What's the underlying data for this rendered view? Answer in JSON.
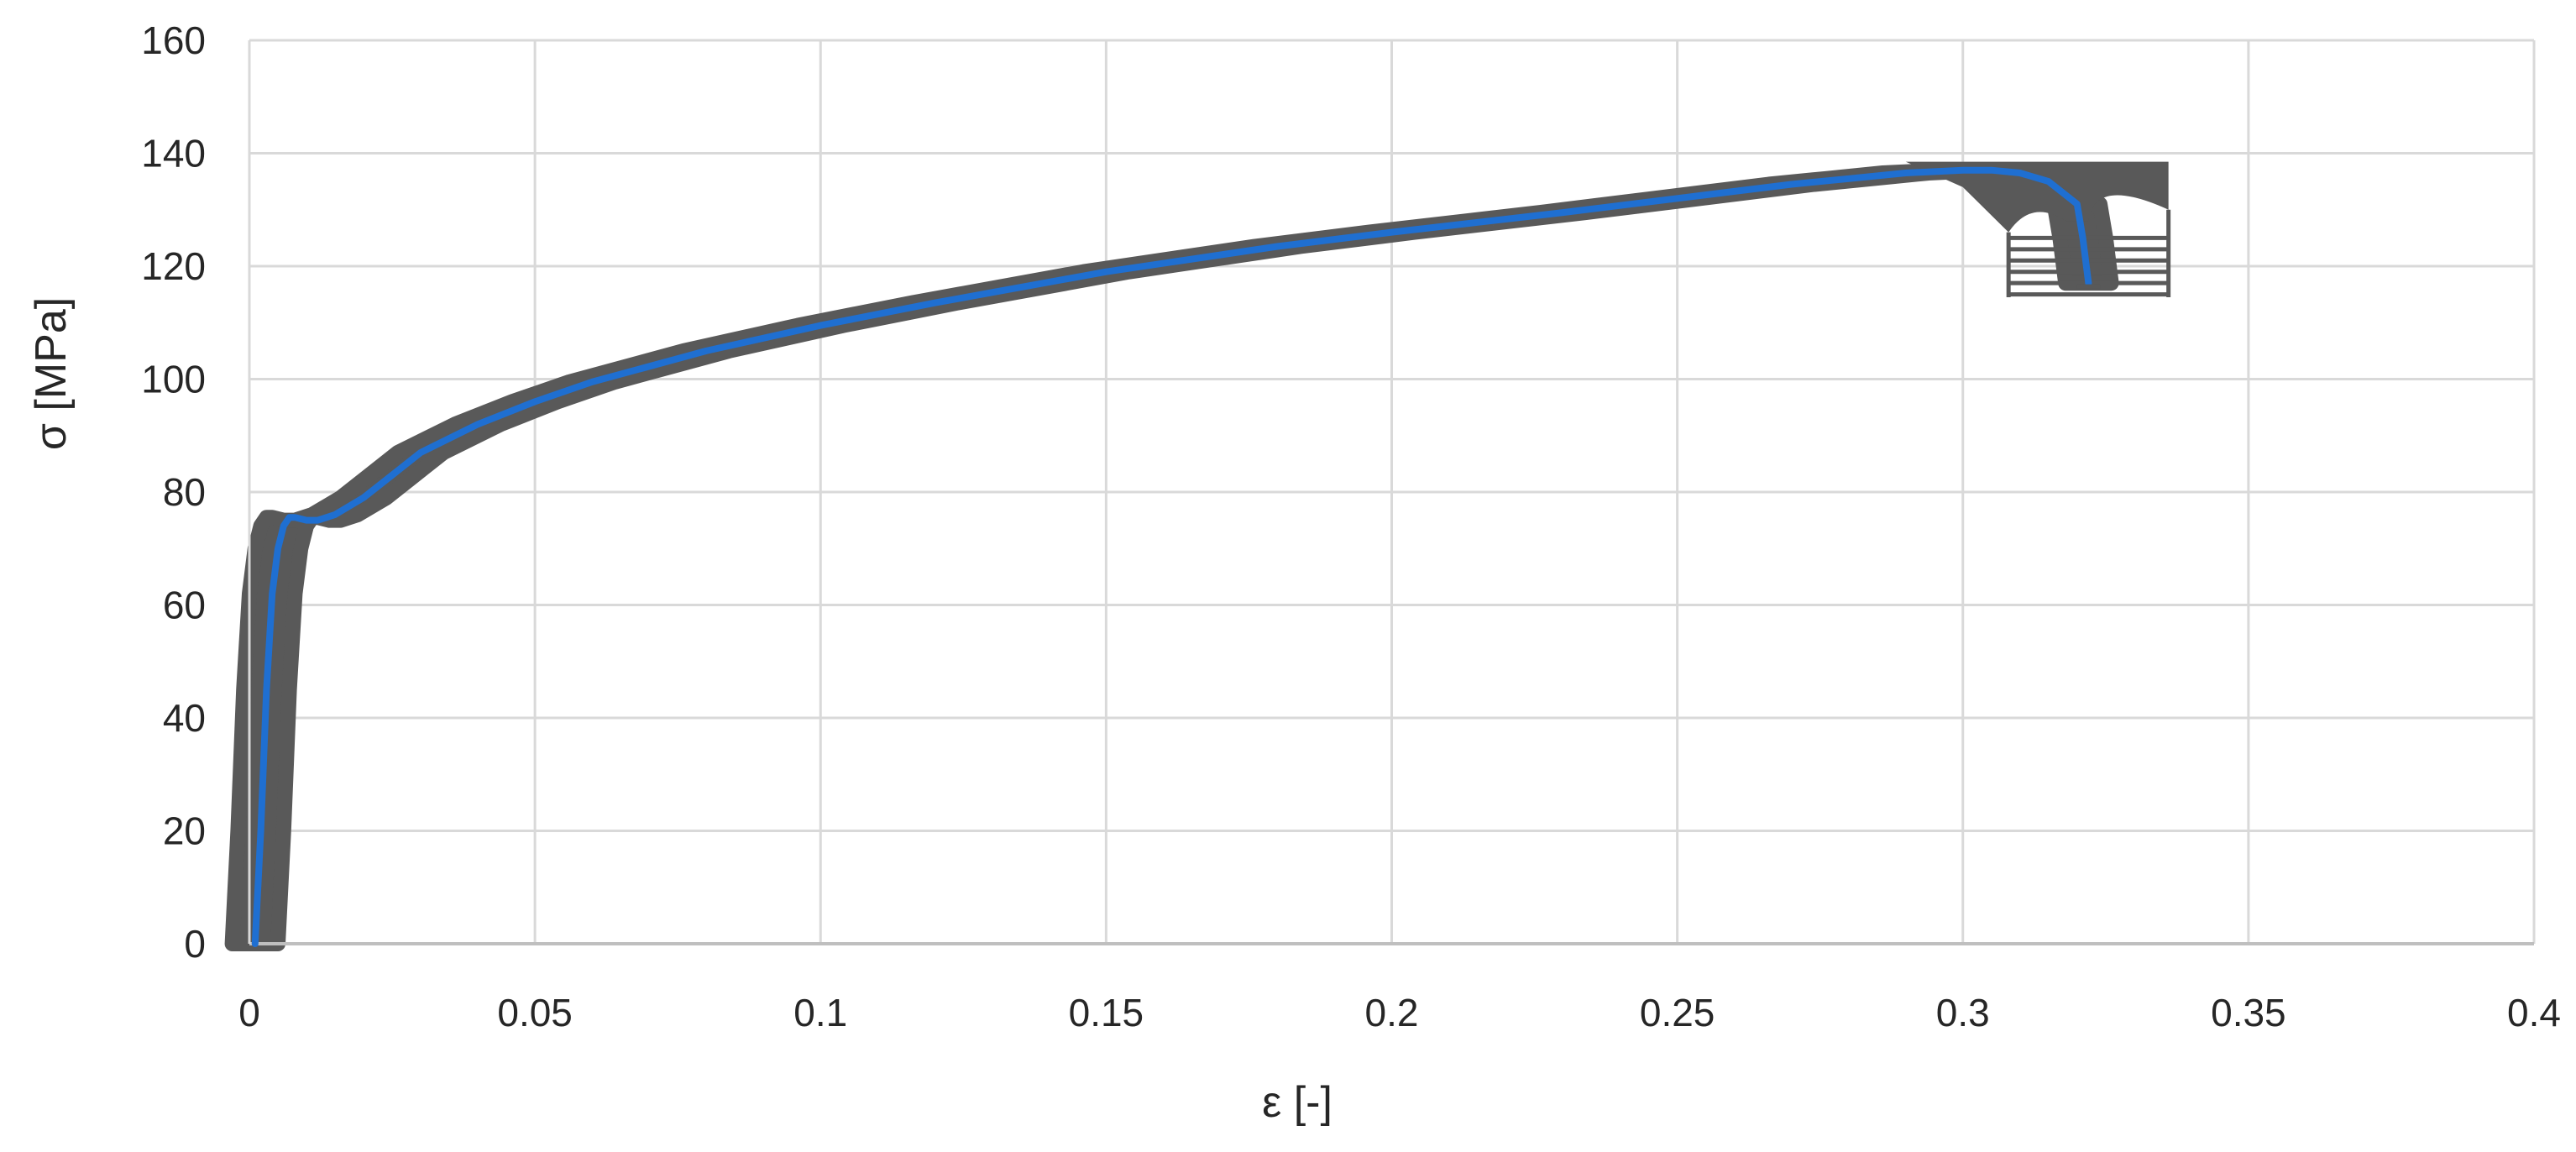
{
  "chart_data": {
    "type": "line",
    "title": "",
    "xlabel": "ε [-]",
    "ylabel": "σ [MPa]",
    "xlim": [
      0,
      0.4
    ],
    "ylim": [
      0,
      160
    ],
    "xticks": [
      0,
      0.05,
      0.1,
      0.15,
      0.2,
      0.25,
      0.3,
      0.35,
      0.4
    ],
    "xtick_labels": [
      "0",
      "0.05",
      "0.1",
      "0.15",
      "0.2",
      "0.25",
      "0.3",
      "0.35",
      "0.4"
    ],
    "yticks": [
      0,
      20,
      40,
      60,
      80,
      100,
      120,
      140,
      160
    ],
    "ytick_labels": [
      "0",
      "20",
      "40",
      "60",
      "80",
      "100",
      "120",
      "140",
      "160"
    ],
    "grid": true,
    "legend": "none",
    "series": [
      {
        "color": "#1f6fd1",
        "x": [
          0.001,
          0.002,
          0.003,
          0.004,
          0.005,
          0.006,
          0.007,
          0.008,
          0.01,
          0.012,
          0.015,
          0.02,
          0.025,
          0.03,
          0.04,
          0.05,
          0.06,
          0.08,
          0.1,
          0.12,
          0.15,
          0.18,
          0.2,
          0.23,
          0.25,
          0.27,
          0.28,
          0.29,
          0.3,
          0.305,
          0.31,
          0.315,
          0.32,
          0.321,
          0.322
        ],
        "y": [
          0,
          20,
          45,
          62,
          70,
          74,
          75.5,
          75.5,
          75,
          75,
          76,
          79,
          83,
          87,
          92,
          96,
          99.5,
          105,
          109.5,
          113.5,
          119,
          123.5,
          126,
          129.5,
          132,
          134.5,
          135.5,
          136.5,
          137,
          137,
          136.5,
          135,
          131,
          125,
          117
        ]
      }
    ],
    "error_band": {
      "color": "#595959",
      "description": "",
      "x": [
        0.001,
        0.002,
        0.003,
        0.004,
        0.005,
        0.006,
        0.007,
        0.008,
        0.01,
        0.012,
        0.015,
        0.02,
        0.025,
        0.03,
        0.04,
        0.05,
        0.06,
        0.08,
        0.1,
        0.12,
        0.15,
        0.18,
        0.2,
        0.23,
        0.25,
        0.27,
        0.28,
        0.29,
        0.3,
        0.305,
        0.31,
        0.315,
        0.32,
        0.321,
        0.322
      ],
      "half_width": 0.004,
      "terminal_error_bars": {
        "x_left": 0.308,
        "x_right": 0.336,
        "y_values": [
          115,
          117,
          119,
          121,
          123,
          125
        ]
      }
    }
  }
}
